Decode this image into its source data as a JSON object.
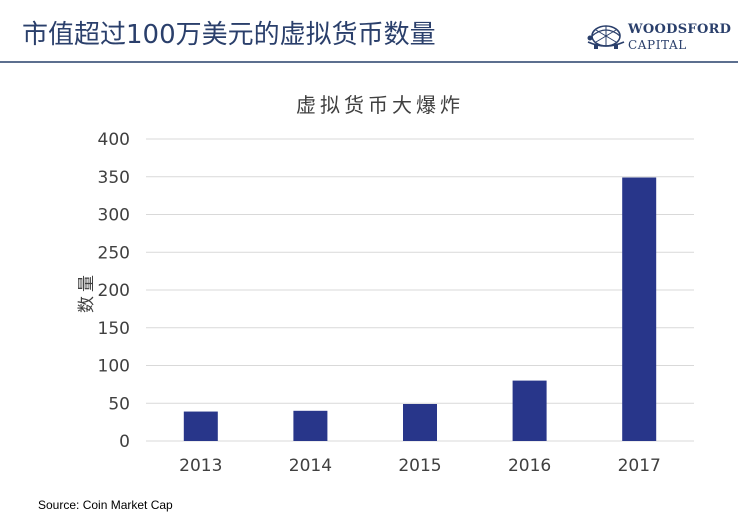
{
  "header": {
    "title": "市值超过100万美元的虚拟货币数量",
    "logo": {
      "line1": "WOODSFORD",
      "line2": "CAPITAL",
      "icon": "tortoise-globe-icon"
    }
  },
  "colors": {
    "bar": "#28368a",
    "title": "#2a3f6b",
    "grid": "#d9d9d9"
  },
  "chart_data": {
    "type": "bar",
    "title": "虚拟货币大爆炸",
    "xlabel": "",
    "ylabel": "数量",
    "categories": [
      "2013",
      "2014",
      "2015",
      "2016",
      "2017"
    ],
    "values": [
      39,
      40,
      49,
      80,
      349
    ],
    "ylim": [
      0,
      400
    ],
    "yticks": [
      "0",
      "50",
      "100",
      "150",
      "200",
      "250",
      "300",
      "350",
      "400"
    ],
    "grid": true,
    "legend": "none"
  },
  "footer": {
    "source": "Source: Coin Market Cap"
  }
}
